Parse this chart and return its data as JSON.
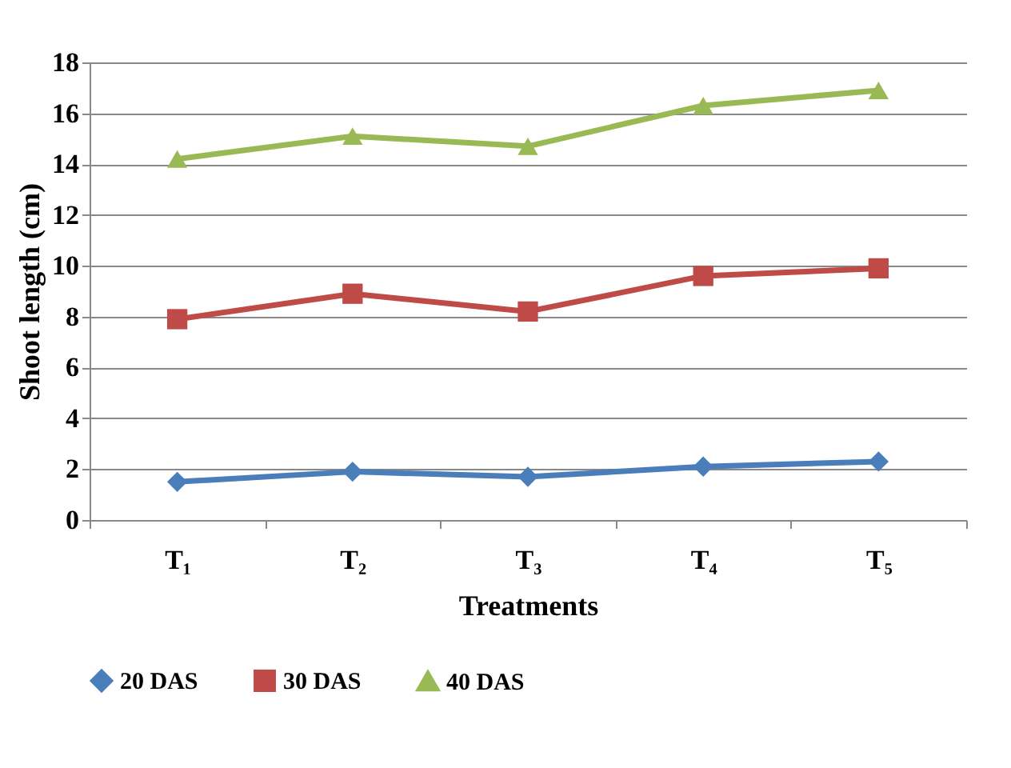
{
  "chart_data": {
    "type": "line",
    "xlabel": "Treatments",
    "ylabel": "Shoot length (cm)",
    "categories": [
      "T₁",
      "T₂",
      "T₃",
      "T₄",
      "T₅"
    ],
    "series": [
      {
        "name": "20 DAS",
        "color": "#4a7ebb",
        "marker": "diamond",
        "values": [
          1.5,
          1.9,
          1.7,
          2.1,
          2.3
        ]
      },
      {
        "name": "30 DAS",
        "color": "#be4b48",
        "marker": "square",
        "values": [
          7.9,
          8.9,
          8.2,
          9.6,
          9.9
        ]
      },
      {
        "name": "40 DAS",
        "color": "#98b954",
        "marker": "triangle",
        "values": [
          14.2,
          15.1,
          14.7,
          16.3,
          16.9
        ]
      }
    ],
    "ylim": [
      0,
      18
    ],
    "yticks": [
      0,
      2,
      4,
      6,
      8,
      10,
      12,
      14,
      16,
      18
    ],
    "grid": "y",
    "legend": "bottom",
    "line_style": "solid"
  }
}
